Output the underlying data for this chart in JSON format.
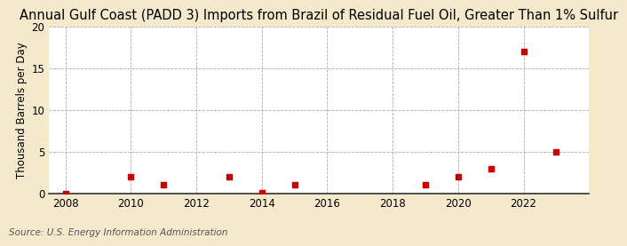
{
  "title": "Annual Gulf Coast (PADD 3) Imports from Brazil of Residual Fuel Oil, Greater Than 1% Sulfur",
  "ylabel": "Thousand Barrels per Day",
  "source": "Source: U.S. Energy Information Administration",
  "figure_bg": "#f5e9cc",
  "plot_bg": "#ffffff",
  "data_points": [
    {
      "year": 2008,
      "value": 0.0
    },
    {
      "year": 2010,
      "value": 2.0
    },
    {
      "year": 2011,
      "value": 1.0
    },
    {
      "year": 2013,
      "value": 2.0
    },
    {
      "year": 2014,
      "value": 0.05
    },
    {
      "year": 2015,
      "value": 1.0
    },
    {
      "year": 2019,
      "value": 1.0
    },
    {
      "year": 2020,
      "value": 2.0
    },
    {
      "year": 2021,
      "value": 3.0
    },
    {
      "year": 2022,
      "value": 17.0
    },
    {
      "year": 2023,
      "value": 5.0
    }
  ],
  "marker_color": "#cc0000",
  "marker": "s",
  "marker_size": 4,
  "xlim": [
    2007.5,
    2024.0
  ],
  "ylim": [
    0,
    20
  ],
  "xticks": [
    2008,
    2010,
    2012,
    2014,
    2016,
    2018,
    2020,
    2022
  ],
  "yticks": [
    0,
    5,
    10,
    15,
    20
  ],
  "grid_color": "#aaaaaa",
  "grid_style": "--",
  "title_fontsize": 10.5,
  "label_fontsize": 8.5,
  "tick_fontsize": 8.5,
  "source_fontsize": 7.5
}
